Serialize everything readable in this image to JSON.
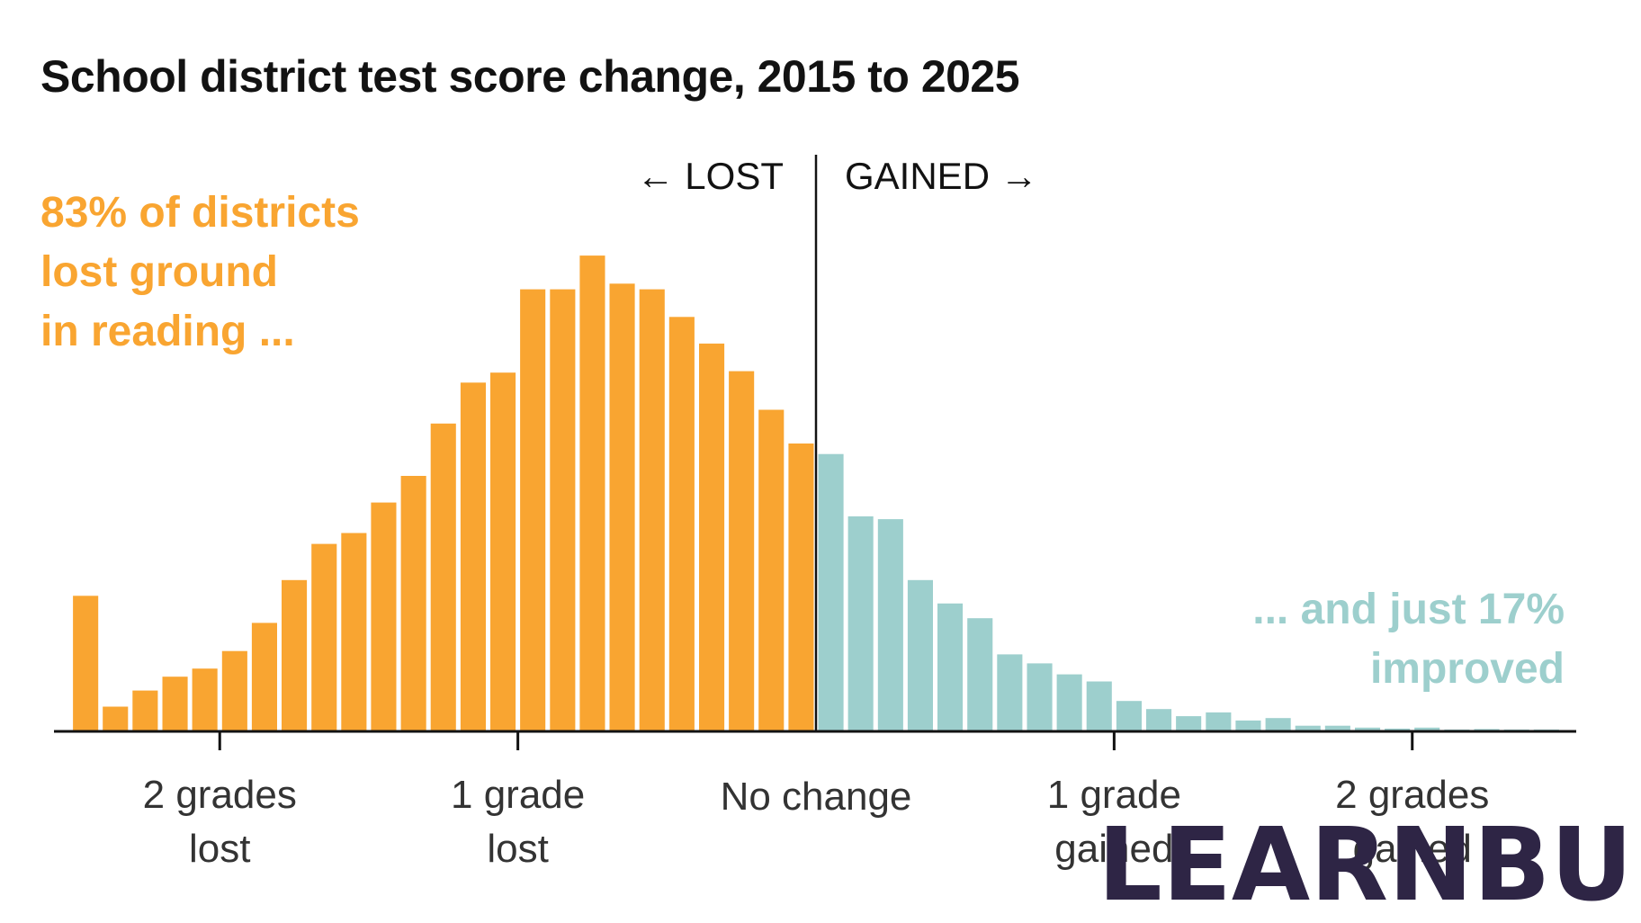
{
  "title": "School district test score change, 2015 to 2025",
  "colors": {
    "lost": "#F9A531",
    "gained": "#9DCFCD",
    "axis": "#121212",
    "title": "#121212",
    "tick_text": "#333333",
    "logo": "#2E2545"
  },
  "annotations": {
    "left": [
      "83% of districts",
      "lost ground",
      "in reading ..."
    ],
    "right": [
      "... and just 17%",
      "improved"
    ]
  },
  "direction_labels": {
    "lost": "← LOST",
    "gained": "GAINED →"
  },
  "watermark": "LEARNBU",
  "chart_data": {
    "type": "bar",
    "title": "School district test score change, 2015 to 2025",
    "xlabel": "",
    "ylabel": "",
    "x_unit": "grade levels",
    "xlim": [
      -2.55,
      2.55
    ],
    "ylim": [
      0,
      100
    ],
    "bin_width": 0.1,
    "x_ticks": [
      {
        "value": -2,
        "label": [
          "2 grades",
          "lost"
        ]
      },
      {
        "value": -1,
        "label": [
          "1 grade",
          "lost"
        ]
      },
      {
        "value": 0,
        "label": [
          "No change"
        ]
      },
      {
        "value": 1,
        "label": [
          "1 grade",
          "gained"
        ]
      },
      {
        "value": 2,
        "label": [
          "2 grades",
          "gained"
        ]
      }
    ],
    "series": [
      {
        "name": "lost",
        "bin_start": -2.5,
        "values": [
          28.3,
          5.0,
          8.4,
          11.3,
          13.0,
          16.7,
          22.6,
          31.6,
          39.2,
          41.5,
          47.9,
          53.5,
          64.5,
          73.1,
          75.2,
          92.7,
          92.7,
          99.8,
          93.9,
          92.7,
          86.9,
          81.3,
          75.5,
          67.4,
          60.3
        ]
      },
      {
        "name": "gained",
        "bin_start": 0.0,
        "values": [
          58.1,
          45.0,
          44.4,
          31.6,
          26.7,
          23.6,
          16.0,
          14.1,
          11.8,
          10.3,
          6.2,
          4.5,
          3.0,
          3.8,
          2.1,
          2.6,
          1.0,
          1.0,
          0.6,
          0.4,
          0.6,
          0.2,
          0.3,
          0.2,
          0.2
        ]
      }
    ],
    "summary": {
      "lost_pct": 83,
      "gained_pct": 17
    }
  }
}
